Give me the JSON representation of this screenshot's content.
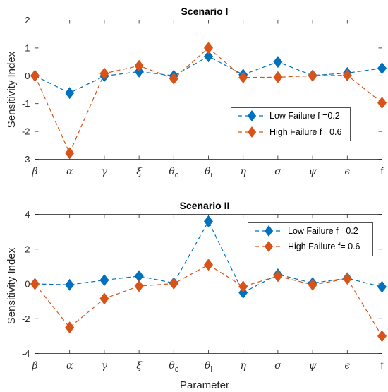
{
  "colors": {
    "low": "#0072BD",
    "high": "#D95319"
  },
  "chart_data": [
    {
      "type": "line",
      "title": "Scenario I",
      "ylabel": "Sensitivity Index",
      "xlabel": "",
      "categories": [
        {
          "base": "β",
          "sub": ""
        },
        {
          "base": "α",
          "sub": ""
        },
        {
          "base": "γ",
          "sub": ""
        },
        {
          "base": "ξ",
          "sub": ""
        },
        {
          "base": "θ",
          "sub": "c"
        },
        {
          "base": "θ",
          "sub": "i"
        },
        {
          "base": "η",
          "sub": ""
        },
        {
          "base": "σ",
          "sub": ""
        },
        {
          "base": "ψ",
          "sub": ""
        },
        {
          "base": "ϵ",
          "sub": ""
        },
        {
          "base": "f",
          "sub": ""
        }
      ],
      "ylim": [
        -3,
        2
      ],
      "yticks": [
        2,
        1,
        0,
        -1,
        -2,
        -3
      ],
      "ytick_labels": [
        "2",
        "1",
        "0",
        "-1",
        "-2",
        "-3"
      ],
      "legend_position": "right-middle",
      "series": [
        {
          "name": "Low Failure f =0.2",
          "color_key": "low",
          "values": [
            0,
            -0.62,
            -0.01,
            0.15,
            0,
            0.7,
            0.04,
            0.5,
            0.01,
            0.1,
            0.27
          ]
        },
        {
          "name": "High Failure f =0.6",
          "color_key": "high",
          "values": [
            0,
            -2.78,
            0.08,
            0.36,
            -0.1,
            1.0,
            -0.06,
            -0.05,
            0,
            0.02,
            -0.97
          ]
        }
      ]
    },
    {
      "type": "line",
      "title": "Scenario II",
      "ylabel": "Sensitivity Index",
      "xlabel": "Parameter",
      "categories": [
        {
          "base": "β",
          "sub": ""
        },
        {
          "base": "α",
          "sub": ""
        },
        {
          "base": "γ",
          "sub": ""
        },
        {
          "base": "ξ",
          "sub": ""
        },
        {
          "base": "θ",
          "sub": "c"
        },
        {
          "base": "θ",
          "sub": "i"
        },
        {
          "base": "η",
          "sub": ""
        },
        {
          "base": "σ",
          "sub": ""
        },
        {
          "base": "ψ",
          "sub": ""
        },
        {
          "base": "ϵ",
          "sub": ""
        },
        {
          "base": "f",
          "sub": ""
        }
      ],
      "ylim": [
        -4,
        4
      ],
      "yticks": [
        4,
        2,
        0,
        -2,
        -4
      ],
      "ytick_labels": [
        "4",
        "2",
        "0",
        "-2",
        "-4"
      ],
      "legend_position": "top-right",
      "series": [
        {
          "name": "Low Failure f =0.2",
          "color_key": "low",
          "values": [
            0,
            -0.05,
            0.22,
            0.45,
            0.05,
            3.6,
            -0.5,
            0.55,
            0.05,
            0.33,
            -0.17
          ]
        },
        {
          "name": "High Failure f= 0.6",
          "color_key": "high",
          "values": [
            0,
            -2.5,
            -0.85,
            -0.12,
            0.02,
            1.1,
            -0.15,
            0.45,
            -0.05,
            0.3,
            -3.0
          ]
        }
      ]
    }
  ]
}
